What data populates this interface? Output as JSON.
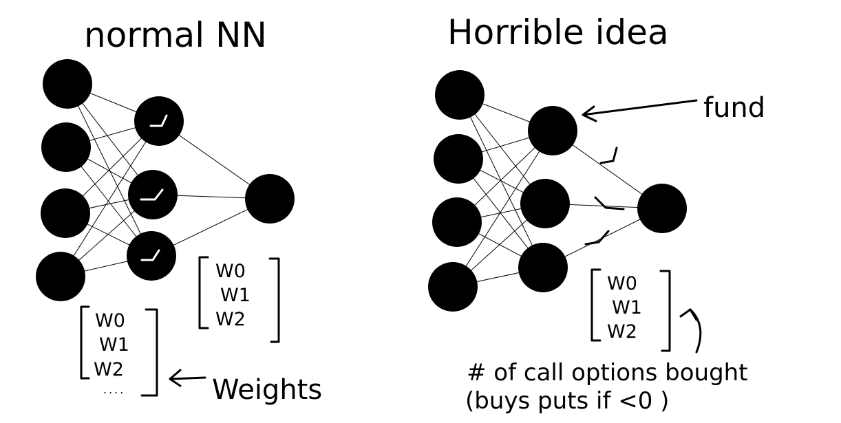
{
  "left_panel": {
    "title": "normal NN",
    "weights_hidden": [
      "W0",
      "W1",
      "W2"
    ],
    "weights_input": [
      "W0",
      "W1",
      "W2"
    ],
    "weights_input_more": "....",
    "weights_label": "Weights"
  },
  "right_panel": {
    "title": "Horrible idea",
    "fund_label": "fund",
    "weights": [
      "W0",
      "W1",
      "W2"
    ],
    "note_line1": "# of call options bought",
    "note_line2": "(buys puts if <0 )"
  }
}
